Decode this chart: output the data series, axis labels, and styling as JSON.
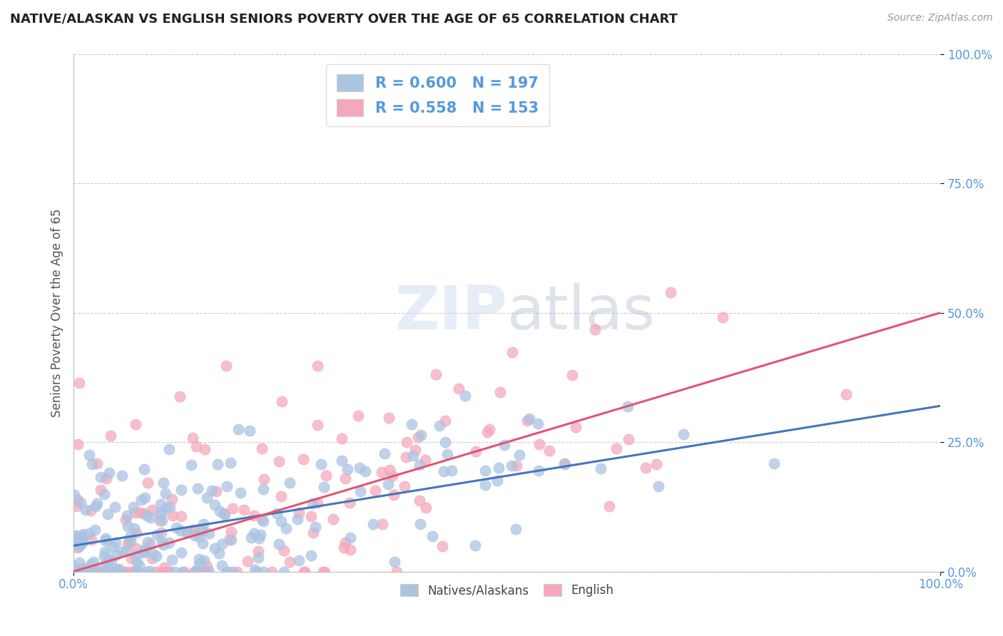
{
  "title": "NATIVE/ALASKAN VS ENGLISH SENIORS POVERTY OVER THE AGE OF 65 CORRELATION CHART",
  "source": "Source: ZipAtlas.com",
  "ylabel": "Seniors Poverty Over the Age of 65",
  "xlim": [
    0.0,
    1.0
  ],
  "ylim": [
    0.0,
    1.0
  ],
  "y_tick_positions": [
    0.0,
    0.25,
    0.5,
    0.75,
    1.0
  ],
  "bottom_legend_labels": [
    "Natives/Alaskans",
    "English"
  ],
  "blue_color": "#aac4e2",
  "pink_color": "#f5a8bc",
  "blue_line_color": "#4477bb",
  "pink_line_color": "#e05575",
  "background_color": "#ffffff",
  "grid_color": "#cccccc",
  "title_color": "#222222",
  "axis_tick_color": "#5599dd",
  "legend_text_color": "#5599dd",
  "r_value_blue": 0.6,
  "n_blue": 197,
  "r_value_pink": 0.558,
  "n_pink": 153,
  "blue_intercept": 0.05,
  "blue_slope": 0.27,
  "pink_intercept": 0.0,
  "pink_slope": 0.5,
  "seed": 7
}
